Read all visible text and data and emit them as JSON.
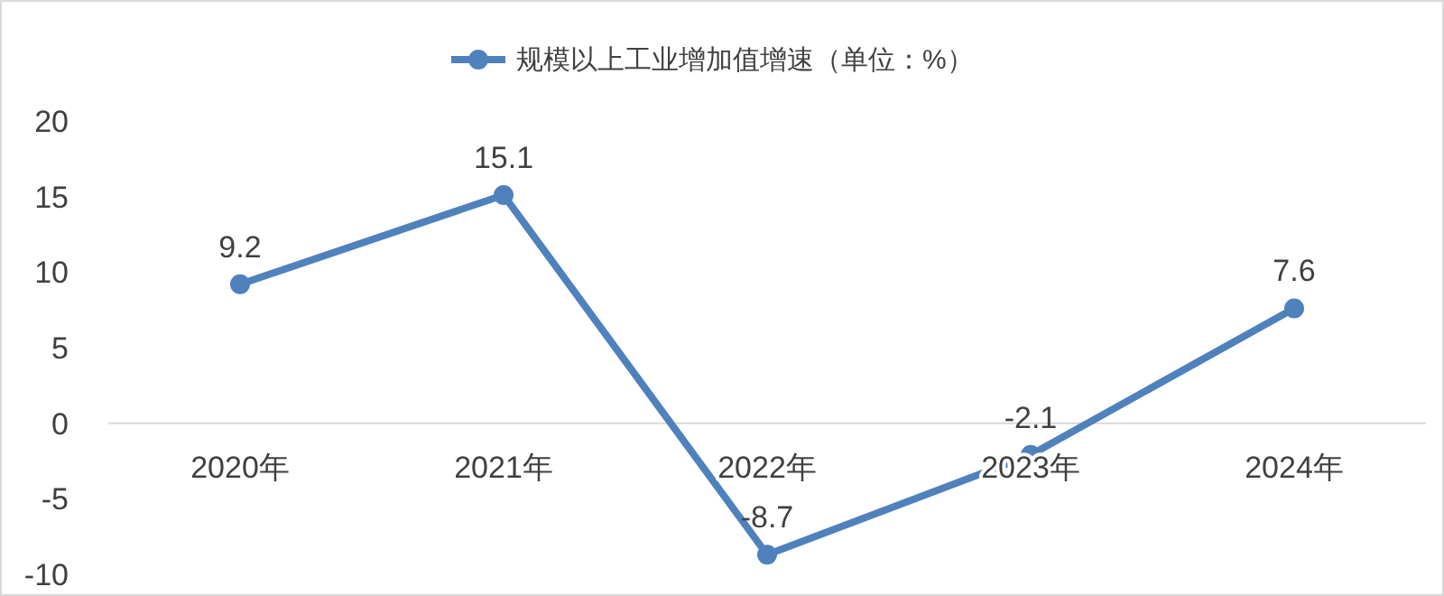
{
  "chart_data": {
    "type": "line",
    "categories": [
      "2020年",
      "2021年",
      "2022年",
      "2023年",
      "2024年"
    ],
    "series": [
      {
        "name": "规模以上工业增加值增速（单位：%）",
        "color": "#4f81bd",
        "values": [
          9.2,
          15.1,
          -8.7,
          -2.1,
          7.6
        ]
      }
    ],
    "ylim": [
      -10,
      20
    ],
    "yticks": [
      -10,
      -5,
      0,
      5,
      10,
      15,
      20
    ],
    "legend": "top",
    "marker": "circle",
    "data_labels": true
  }
}
